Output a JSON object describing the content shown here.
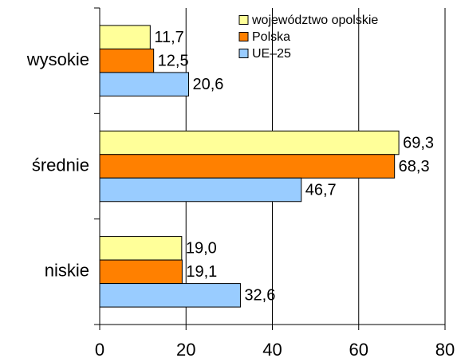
{
  "chart_data": {
    "type": "hbar",
    "categories": [
      "wysokie",
      "średnie",
      "niskie"
    ],
    "series": [
      {
        "name": "województwo opolskie",
        "color": "#ffff99",
        "values": [
          11.7,
          69.3,
          19.0
        ],
        "value_labels": [
          "11,7",
          "69,3",
          "19,0"
        ]
      },
      {
        "name": "Polska",
        "color": "#ff8000",
        "values": [
          12.5,
          68.3,
          19.1
        ],
        "value_labels": [
          "12,5",
          "68,3",
          "19,1"
        ]
      },
      {
        "name": "UE–25",
        "color": "#99ccff",
        "values": [
          20.6,
          46.7,
          32.6
        ],
        "value_labels": [
          "20,6",
          "46,7",
          "32,6"
        ]
      }
    ],
    "xlim": [
      0,
      80
    ],
    "xticks": [
      0,
      20,
      40,
      60,
      80
    ],
    "grid": true,
    "legend": "top-right"
  }
}
